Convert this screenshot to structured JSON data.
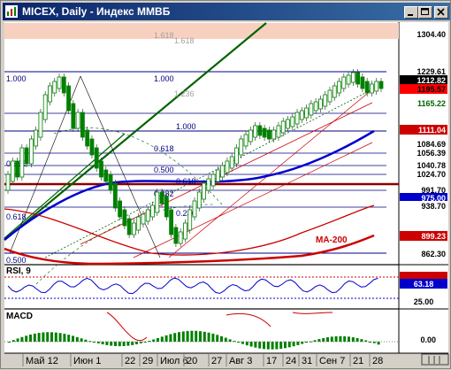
{
  "window": {
    "title": "MICEX, Daily - Индекс ММВБ",
    "buttons": [
      "minimize",
      "maximize",
      "close"
    ]
  },
  "price_scale": [
    {
      "label": "1304.40",
      "bg": "#ffffff",
      "fg": "#000000"
    },
    {
      "label": "1229.61",
      "bg": "#ffffff",
      "fg": "#000000"
    },
    {
      "label": "1212.82",
      "bg": "#000000",
      "fg": "#ffffff"
    },
    {
      "label": "1195.57",
      "bg": "#ff0000",
      "fg": "#000000"
    },
    {
      "label": "1165.22",
      "bg": "#ffffff",
      "fg": "#006400"
    },
    {
      "label": "1111.04",
      "bg": "#cc0000",
      "fg": "#ffffff"
    },
    {
      "label": "1084.69",
      "bg": "#ffffff",
      "fg": "#000000"
    },
    {
      "label": "1056.39",
      "bg": "#ffffff",
      "fg": "#000000"
    },
    {
      "label": "1040.78",
      "bg": "#ffffff",
      "fg": "#000000"
    },
    {
      "label": "1024.70",
      "bg": "#ffffff",
      "fg": "#000000"
    },
    {
      "label": "991.70",
      "bg": "#ffffff",
      "fg": "#000000"
    },
    {
      "label": "975.00",
      "bg": "#0000cc",
      "fg": "#ffffff"
    },
    {
      "label": "938.70",
      "bg": "#ffffff",
      "fg": "#000000"
    },
    {
      "label": "899.23",
      "bg": "#cc0000",
      "fg": "#ffffff"
    },
    {
      "label": "862.30",
      "bg": "#ffffff",
      "fg": "#000000"
    }
  ],
  "fib_labels": [
    "1.000",
    "1.000",
    "1.000",
    "1.618",
    "1.236",
    "0.618",
    "0.500",
    "0.382",
    "0.382",
    "0.236",
    "0.618",
    "0.500",
    "1.618",
    "0.618"
  ],
  "ma_label": "MA-200",
  "rsi": {
    "label": "RSI, 9",
    "values": [
      "63.18",
      "25.00"
    ]
  },
  "macd": {
    "label": "MACD",
    "value": "0.00"
  },
  "dates": [
    "Май 12",
    "Июн 1",
    "22",
    "29",
    "Июл 6",
    "20",
    "27",
    "Авг 3",
    "17",
    "24",
    "31",
    "Сен 7",
    "21",
    "28"
  ]
}
